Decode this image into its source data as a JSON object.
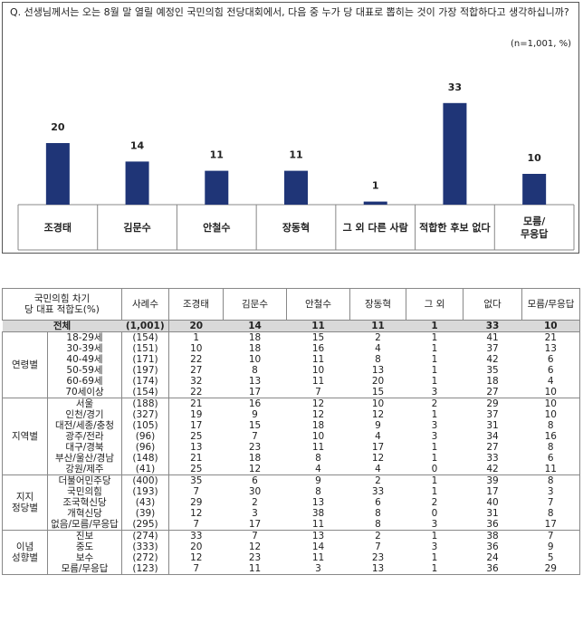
{
  "question": "Q. 선생님께서는 오는 8월 말 열릴 예정인 국민의힘 전당대회에서, 다음 중 누가 당 대표로 뽑히는 것이 가장 적합하다고 생각하십니까?",
  "note": "(n=1,001, %)",
  "chart_data": {
    "type": "bar",
    "categories": [
      "조경태",
      "김문수",
      "안철수",
      "장동혁",
      "그 외 다른 사람",
      "적합한 후보 없다",
      "모름/\n무응답"
    ],
    "values": [
      20,
      14,
      11,
      11,
      1,
      33,
      10
    ],
    "color": "#1f3577"
  },
  "table": {
    "header": [
      "국민의힘 차기\n당 대표 적합도(%)",
      "사례수",
      "조경태",
      "김문수",
      "안철수",
      "장동혁",
      "그 외",
      "없다",
      "모름/무응답"
    ],
    "total": {
      "label": "전체",
      "values": [
        "(1,001)",
        20,
        14,
        11,
        11,
        1,
        33,
        10
      ]
    },
    "groups": [
      {
        "label": "연령별",
        "rows": [
          {
            "label": "18-29세",
            "values": [
              "(154)",
              1,
              18,
              15,
              2,
              1,
              41,
              21
            ]
          },
          {
            "label": "30-39세",
            "values": [
              "(151)",
              10,
              18,
              16,
              4,
              1,
              37,
              13
            ]
          },
          {
            "label": "40-49세",
            "values": [
              "(171)",
              22,
              10,
              11,
              8,
              1,
              42,
              6
            ]
          },
          {
            "label": "50-59세",
            "values": [
              "(197)",
              27,
              8,
              10,
              13,
              1,
              35,
              6
            ]
          },
          {
            "label": "60-69세",
            "values": [
              "(174)",
              32,
              13,
              11,
              20,
              1,
              18,
              4
            ]
          },
          {
            "label": "70세이상",
            "values": [
              "(154)",
              22,
              17,
              7,
              15,
              3,
              27,
              10
            ]
          }
        ]
      },
      {
        "label": "지역별",
        "rows": [
          {
            "label": "서울",
            "values": [
              "(188)",
              21,
              16,
              12,
              10,
              2,
              29,
              10
            ]
          },
          {
            "label": "인천/경기",
            "values": [
              "(327)",
              19,
              9,
              12,
              12,
              1,
              37,
              10
            ]
          },
          {
            "label": "대전/세종/충청",
            "values": [
              "(105)",
              17,
              15,
              18,
              9,
              3,
              31,
              8
            ]
          },
          {
            "label": "광주/전라",
            "values": [
              "(96)",
              25,
              7,
              10,
              4,
              3,
              34,
              16
            ]
          },
          {
            "label": "대구/경북",
            "values": [
              "(96)",
              13,
              23,
              11,
              17,
              1,
              27,
              8
            ]
          },
          {
            "label": "부산/울산/경남",
            "values": [
              "(148)",
              21,
              18,
              8,
              12,
              1,
              33,
              6
            ]
          },
          {
            "label": "강원/제주",
            "values": [
              "(41)",
              25,
              12,
              4,
              4,
              0,
              42,
              11
            ]
          }
        ]
      },
      {
        "label": "지지\n정당별",
        "rows": [
          {
            "label": "더불어민주당",
            "values": [
              "(400)",
              35,
              6,
              9,
              2,
              1,
              39,
              8
            ]
          },
          {
            "label": "국민의힘",
            "values": [
              "(193)",
              7,
              30,
              8,
              33,
              1,
              17,
              3
            ]
          },
          {
            "label": "조국혁신당",
            "values": [
              "(43)",
              29,
              2,
              13,
              6,
              2,
              40,
              7
            ]
          },
          {
            "label": "개혁신당",
            "values": [
              "(39)",
              12,
              3,
              38,
              8,
              0,
              31,
              8
            ]
          },
          {
            "label": "없음/모름/무응답",
            "values": [
              "(295)",
              7,
              17,
              11,
              8,
              3,
              36,
              17
            ]
          }
        ]
      },
      {
        "label": "이념\n성향별",
        "rows": [
          {
            "label": "진보",
            "values": [
              "(274)",
              33,
              7,
              13,
              2,
              1,
              38,
              7
            ]
          },
          {
            "label": "중도",
            "values": [
              "(333)",
              20,
              12,
              14,
              7,
              3,
              36,
              9
            ]
          },
          {
            "label": "보수",
            "values": [
              "(272)",
              12,
              23,
              11,
              23,
              1,
              24,
              5
            ]
          },
          {
            "label": "모름/무응답",
            "values": [
              "(123)",
              7,
              11,
              3,
              13,
              1,
              36,
              29
            ]
          }
        ]
      }
    ]
  }
}
